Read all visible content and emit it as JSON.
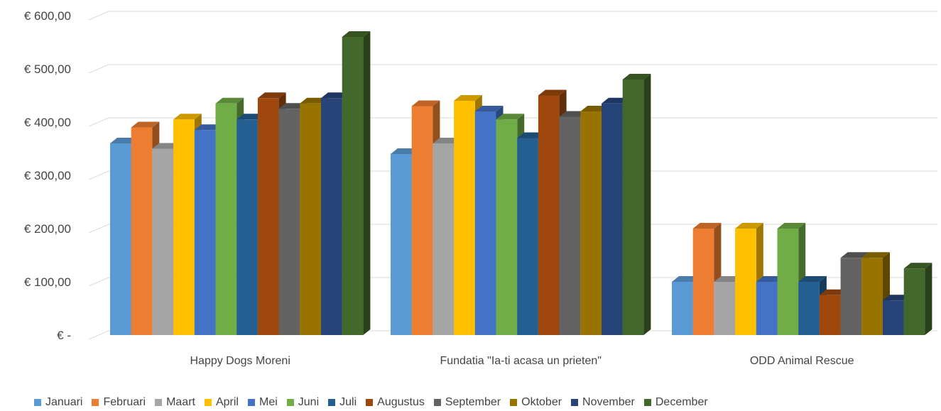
{
  "chart_data": {
    "type": "bar",
    "categories": [
      "Happy Dogs Moreni",
      "Fundatia \"Ia-ti acasa un prieten\"",
      "ODD Animal Rescue"
    ],
    "y_tick_labels": [
      "€ -",
      "€ 100,00",
      "€ 200,00",
      "€ 300,00",
      "€ 400,00",
      "€ 500,00",
      "€ 600,00"
    ],
    "ylim": [
      0,
      600
    ],
    "grid": true,
    "legend_position": "bottom",
    "series": [
      {
        "name": "Januari",
        "color": "#5B9BD5",
        "values": [
          360,
          340,
          100
        ]
      },
      {
        "name": "Februari",
        "color": "#ED7D31",
        "values": [
          390,
          430,
          200
        ]
      },
      {
        "name": "Maart",
        "color": "#A5A5A5",
        "values": [
          350,
          360,
          100
        ]
      },
      {
        "name": "April",
        "color": "#FFC000",
        "values": [
          405,
          440,
          200
        ]
      },
      {
        "name": "Mei",
        "color": "#4472C4",
        "values": [
          385,
          420,
          100
        ]
      },
      {
        "name": "Juni",
        "color": "#70AD47",
        "values": [
          435,
          405,
          200
        ]
      },
      {
        "name": "Juli",
        "color": "#255E91",
        "values": [
          405,
          370,
          100
        ]
      },
      {
        "name": "Augustus",
        "color": "#9E480E",
        "values": [
          445,
          450,
          75
        ]
      },
      {
        "name": "September",
        "color": "#636363",
        "values": [
          425,
          410,
          145
        ]
      },
      {
        "name": "Oktober",
        "color": "#997300",
        "values": [
          435,
          420,
          145
        ]
      },
      {
        "name": "November",
        "color": "#264478",
        "values": [
          445,
          435,
          65
        ]
      },
      {
        "name": "December",
        "color": "#43682B",
        "values": [
          560,
          480,
          125
        ]
      }
    ]
  }
}
